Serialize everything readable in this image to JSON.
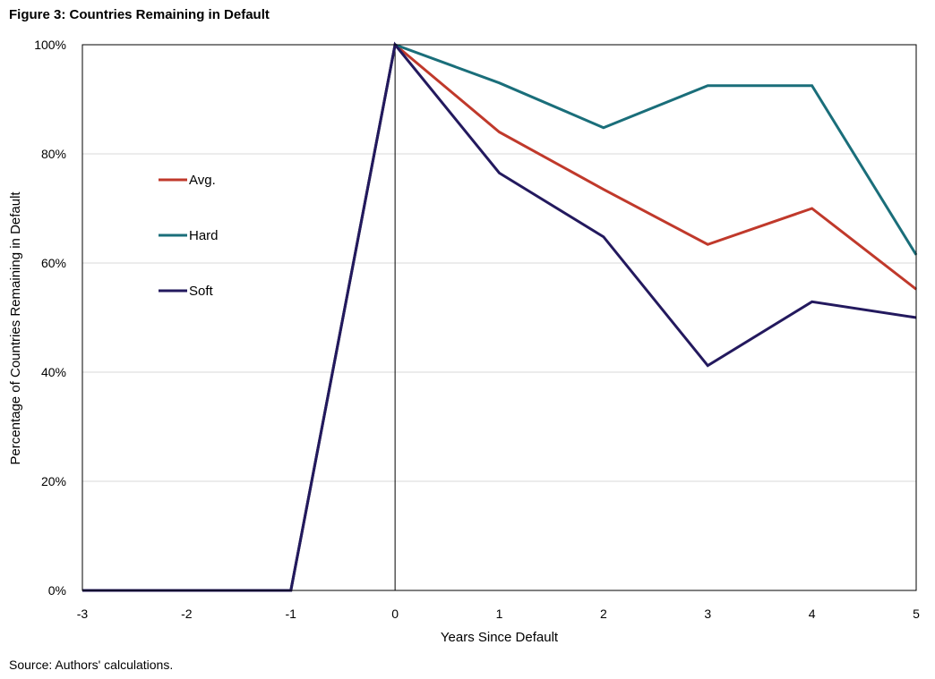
{
  "figure": {
    "title": "Figure 3: Countries Remaining in Default",
    "source": "Source: Authors' calculations."
  },
  "chart_data": {
    "type": "line",
    "title": "",
    "xlabel": "Years Since Default",
    "ylabel": "Percentage of Countries Remaining in Default",
    "x": [
      -3,
      -2,
      -1,
      0,
      1,
      2,
      3,
      4,
      5
    ],
    "xlim": [
      -3,
      5
    ],
    "ylim": [
      0,
      100
    ],
    "yticks": [
      0,
      20,
      40,
      60,
      80,
      100
    ],
    "ytick_labels": [
      "0%",
      "20%",
      "40%",
      "60%",
      "80%",
      "100%"
    ],
    "xtick_labels": [
      "-3",
      "-2",
      "-1",
      "0",
      "1",
      "2",
      "3",
      "4",
      "5"
    ],
    "grid": "horizontal",
    "reference_line_x": 0,
    "legend_position": "left, inside plot",
    "series": [
      {
        "name": "Avg.",
        "color": "#c0392b",
        "values": [
          0,
          0,
          0,
          100,
          84,
          73.5,
          63.4,
          70,
          55.2
        ]
      },
      {
        "name": "Hard",
        "color": "#1a6e7a",
        "values": [
          0,
          0,
          0,
          100,
          93,
          84.8,
          92.5,
          92.5,
          61.5
        ]
      },
      {
        "name": "Soft",
        "color": "#23195e",
        "values": [
          0,
          0,
          0,
          100,
          76.5,
          64.8,
          41.2,
          52.9,
          50
        ]
      }
    ]
  }
}
